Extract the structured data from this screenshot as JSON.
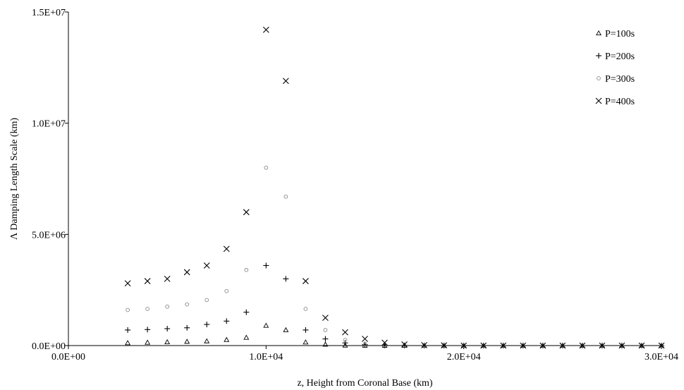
{
  "chart_data": {
    "type": "scatter",
    "title": "",
    "xlabel": "z, Height from Coronal Base (km)",
    "ylabel": "Λ Damping Length Scale (km)",
    "xlim": [
      0,
      30000
    ],
    "ylim": [
      0,
      15000000
    ],
    "x_ticks": [
      {
        "value": 0,
        "label": "0.0E+00"
      },
      {
        "value": 10000,
        "label": "1.0E+04"
      },
      {
        "value": 20000,
        "label": "2.0E+04"
      },
      {
        "value": 30000,
        "label": "3.0E+04"
      }
    ],
    "y_ticks": [
      {
        "value": 0,
        "label": "0.0E+00"
      },
      {
        "value": 5000000,
        "label": "5.0E+06"
      },
      {
        "value": 10000000,
        "label": "1.0E+07"
      },
      {
        "value": 15000000,
        "label": "1.5E+07"
      }
    ],
    "grid": false,
    "legend_position": "top-right",
    "series": [
      {
        "name": "P=100s",
        "marker": "triangle",
        "color": "#000000",
        "points": [
          [
            3000,
            120000
          ],
          [
            4000,
            140000
          ],
          [
            5000,
            160000
          ],
          [
            6000,
            180000
          ],
          [
            7000,
            200000
          ],
          [
            8000,
            260000
          ],
          [
            9000,
            360000
          ],
          [
            10000,
            900000
          ],
          [
            11000,
            700000
          ],
          [
            12000,
            150000
          ],
          [
            13000,
            50000
          ],
          [
            14000,
            10000
          ],
          [
            15000,
            5000
          ],
          [
            16000,
            2000
          ],
          [
            17000,
            1000
          ],
          [
            18000,
            0
          ],
          [
            19000,
            0
          ],
          [
            20000,
            0
          ],
          [
            21000,
            0
          ],
          [
            22000,
            0
          ],
          [
            23000,
            0
          ],
          [
            24000,
            0
          ],
          [
            25000,
            0
          ],
          [
            26000,
            0
          ],
          [
            27000,
            0
          ],
          [
            28000,
            0
          ],
          [
            29000,
            0
          ],
          [
            30000,
            0
          ]
        ]
      },
      {
        "name": "P=200s",
        "marker": "plus",
        "color": "#000000",
        "points": [
          [
            3000,
            700000
          ],
          [
            4000,
            720000
          ],
          [
            5000,
            760000
          ],
          [
            6000,
            800000
          ],
          [
            7000,
            950000
          ],
          [
            8000,
            1100000
          ],
          [
            9000,
            1500000
          ],
          [
            10000,
            3600000
          ],
          [
            11000,
            3000000
          ],
          [
            12000,
            700000
          ],
          [
            13000,
            300000
          ],
          [
            14000,
            120000
          ],
          [
            15000,
            40000
          ],
          [
            16000,
            10000
          ],
          [
            17000,
            5000
          ],
          [
            18000,
            0
          ],
          [
            19000,
            0
          ],
          [
            20000,
            0
          ],
          [
            21000,
            0
          ],
          [
            22000,
            0
          ],
          [
            23000,
            0
          ],
          [
            24000,
            0
          ],
          [
            25000,
            0
          ],
          [
            26000,
            0
          ],
          [
            27000,
            0
          ],
          [
            28000,
            0
          ],
          [
            29000,
            0
          ],
          [
            30000,
            0
          ]
        ]
      },
      {
        "name": "P=300s",
        "marker": "circle",
        "color": "#888888",
        "points": [
          [
            3000,
            1600000
          ],
          [
            4000,
            1650000
          ],
          [
            5000,
            1750000
          ],
          [
            6000,
            1850000
          ],
          [
            7000,
            2050000
          ],
          [
            8000,
            2450000
          ],
          [
            9000,
            3400000
          ],
          [
            10000,
            8000000
          ],
          [
            11000,
            6700000
          ],
          [
            12000,
            1650000
          ],
          [
            13000,
            700000
          ],
          [
            14000,
            250000
          ],
          [
            15000,
            80000
          ],
          [
            16000,
            20000
          ],
          [
            17000,
            10000
          ],
          [
            18000,
            0
          ],
          [
            19000,
            0
          ],
          [
            20000,
            0
          ],
          [
            21000,
            0
          ],
          [
            22000,
            0
          ],
          [
            23000,
            0
          ],
          [
            24000,
            0
          ],
          [
            25000,
            0
          ],
          [
            26000,
            0
          ],
          [
            27000,
            0
          ],
          [
            28000,
            0
          ],
          [
            29000,
            0
          ],
          [
            30000,
            0
          ]
        ]
      },
      {
        "name": "P=400s",
        "marker": "x",
        "color": "#000000",
        "points": [
          [
            3000,
            2800000
          ],
          [
            4000,
            2900000
          ],
          [
            5000,
            3000000
          ],
          [
            6000,
            3300000
          ],
          [
            7000,
            3600000
          ],
          [
            8000,
            4350000
          ],
          [
            9000,
            6000000
          ],
          [
            10000,
            14200000
          ],
          [
            11000,
            11900000
          ],
          [
            12000,
            2900000
          ],
          [
            13000,
            1250000
          ],
          [
            14000,
            600000
          ],
          [
            15000,
            300000
          ],
          [
            16000,
            130000
          ],
          [
            17000,
            50000
          ],
          [
            18000,
            20000
          ],
          [
            19000,
            10000
          ],
          [
            20000,
            0
          ],
          [
            21000,
            0
          ],
          [
            22000,
            0
          ],
          [
            23000,
            0
          ],
          [
            24000,
            0
          ],
          [
            25000,
            0
          ],
          [
            26000,
            0
          ],
          [
            27000,
            0
          ],
          [
            28000,
            0
          ],
          [
            29000,
            0
          ],
          [
            30000,
            0
          ]
        ]
      }
    ]
  }
}
